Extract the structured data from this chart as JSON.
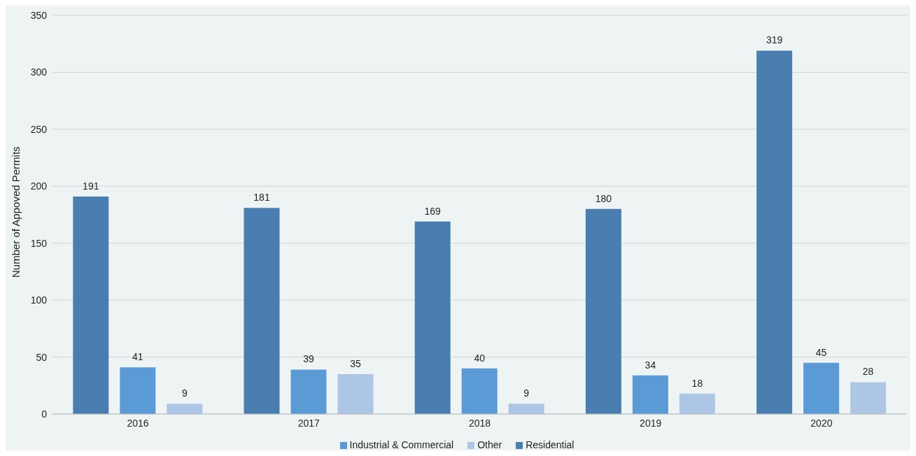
{
  "chart_data": {
    "type": "bar",
    "ylabel": "Number of Appoved Permits",
    "categories": [
      "2016",
      "2017",
      "2018",
      "2019",
      "2020"
    ],
    "series": [
      {
        "name": "Residential",
        "color": "#4a7eb0",
        "values": [
          191,
          181,
          169,
          180,
          319
        ]
      },
      {
        "name": "Industrial & Commercial",
        "color": "#5b9bd5",
        "values": [
          41,
          39,
          40,
          34,
          45
        ]
      },
      {
        "name": "Other",
        "color": "#adc6e5",
        "values": [
          9,
          35,
          9,
          18,
          28
        ]
      }
    ],
    "ylim": [
      0,
      350
    ],
    "yticks": [
      0,
      50,
      100,
      150,
      200,
      250,
      300,
      350
    ],
    "grid": "y",
    "legend": "bottom",
    "data_labels": true
  }
}
